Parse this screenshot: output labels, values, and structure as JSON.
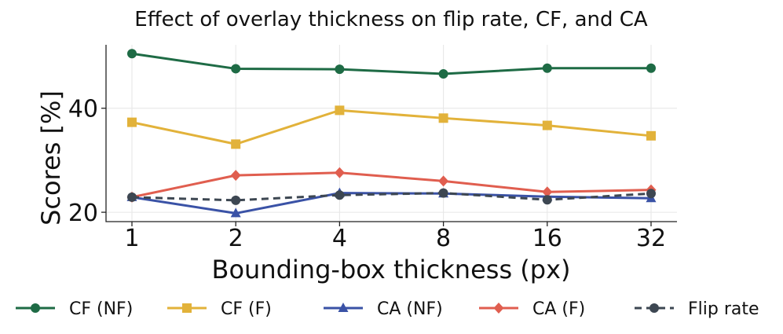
{
  "chart_data": {
    "type": "line",
    "title": "Effect of overlay thickness on flip rate, CF, and CA",
    "xlabel": "Bounding-box thickness (px)",
    "ylabel": "Scores [%]",
    "categories": [
      "1",
      "2",
      "4",
      "8",
      "16",
      "32"
    ],
    "yticks": [
      20,
      40
    ],
    "ylim": [
      18.2,
      52.2
    ],
    "grid": true,
    "legend_position": "bottom",
    "series": [
      {
        "name": "CF (NF)",
        "color": "#1e6b45",
        "marker": "circle",
        "dashed": false,
        "values": [
          50.5,
          47.6,
          47.5,
          46.6,
          47.7,
          47.7
        ]
      },
      {
        "name": "CF (F)",
        "color": "#e2b23a",
        "marker": "square",
        "dashed": false,
        "values": [
          37.3,
          33.1,
          39.6,
          38.1,
          36.7,
          34.7
        ]
      },
      {
        "name": "CA (NF)",
        "color": "#3a52a6",
        "marker": "triangle",
        "dashed": false,
        "values": [
          22.9,
          19.8,
          23.7,
          23.6,
          23.0,
          22.7
        ]
      },
      {
        "name": "CA (F)",
        "color": "#e05e4f",
        "marker": "diamond",
        "dashed": false,
        "values": [
          22.9,
          27.1,
          27.6,
          26.0,
          23.9,
          24.3
        ]
      },
      {
        "name": "Flip rate",
        "color": "#3d4752",
        "marker": "circle",
        "dashed": true,
        "values": [
          22.9,
          22.3,
          23.3,
          23.7,
          22.4,
          23.6
        ]
      }
    ]
  }
}
